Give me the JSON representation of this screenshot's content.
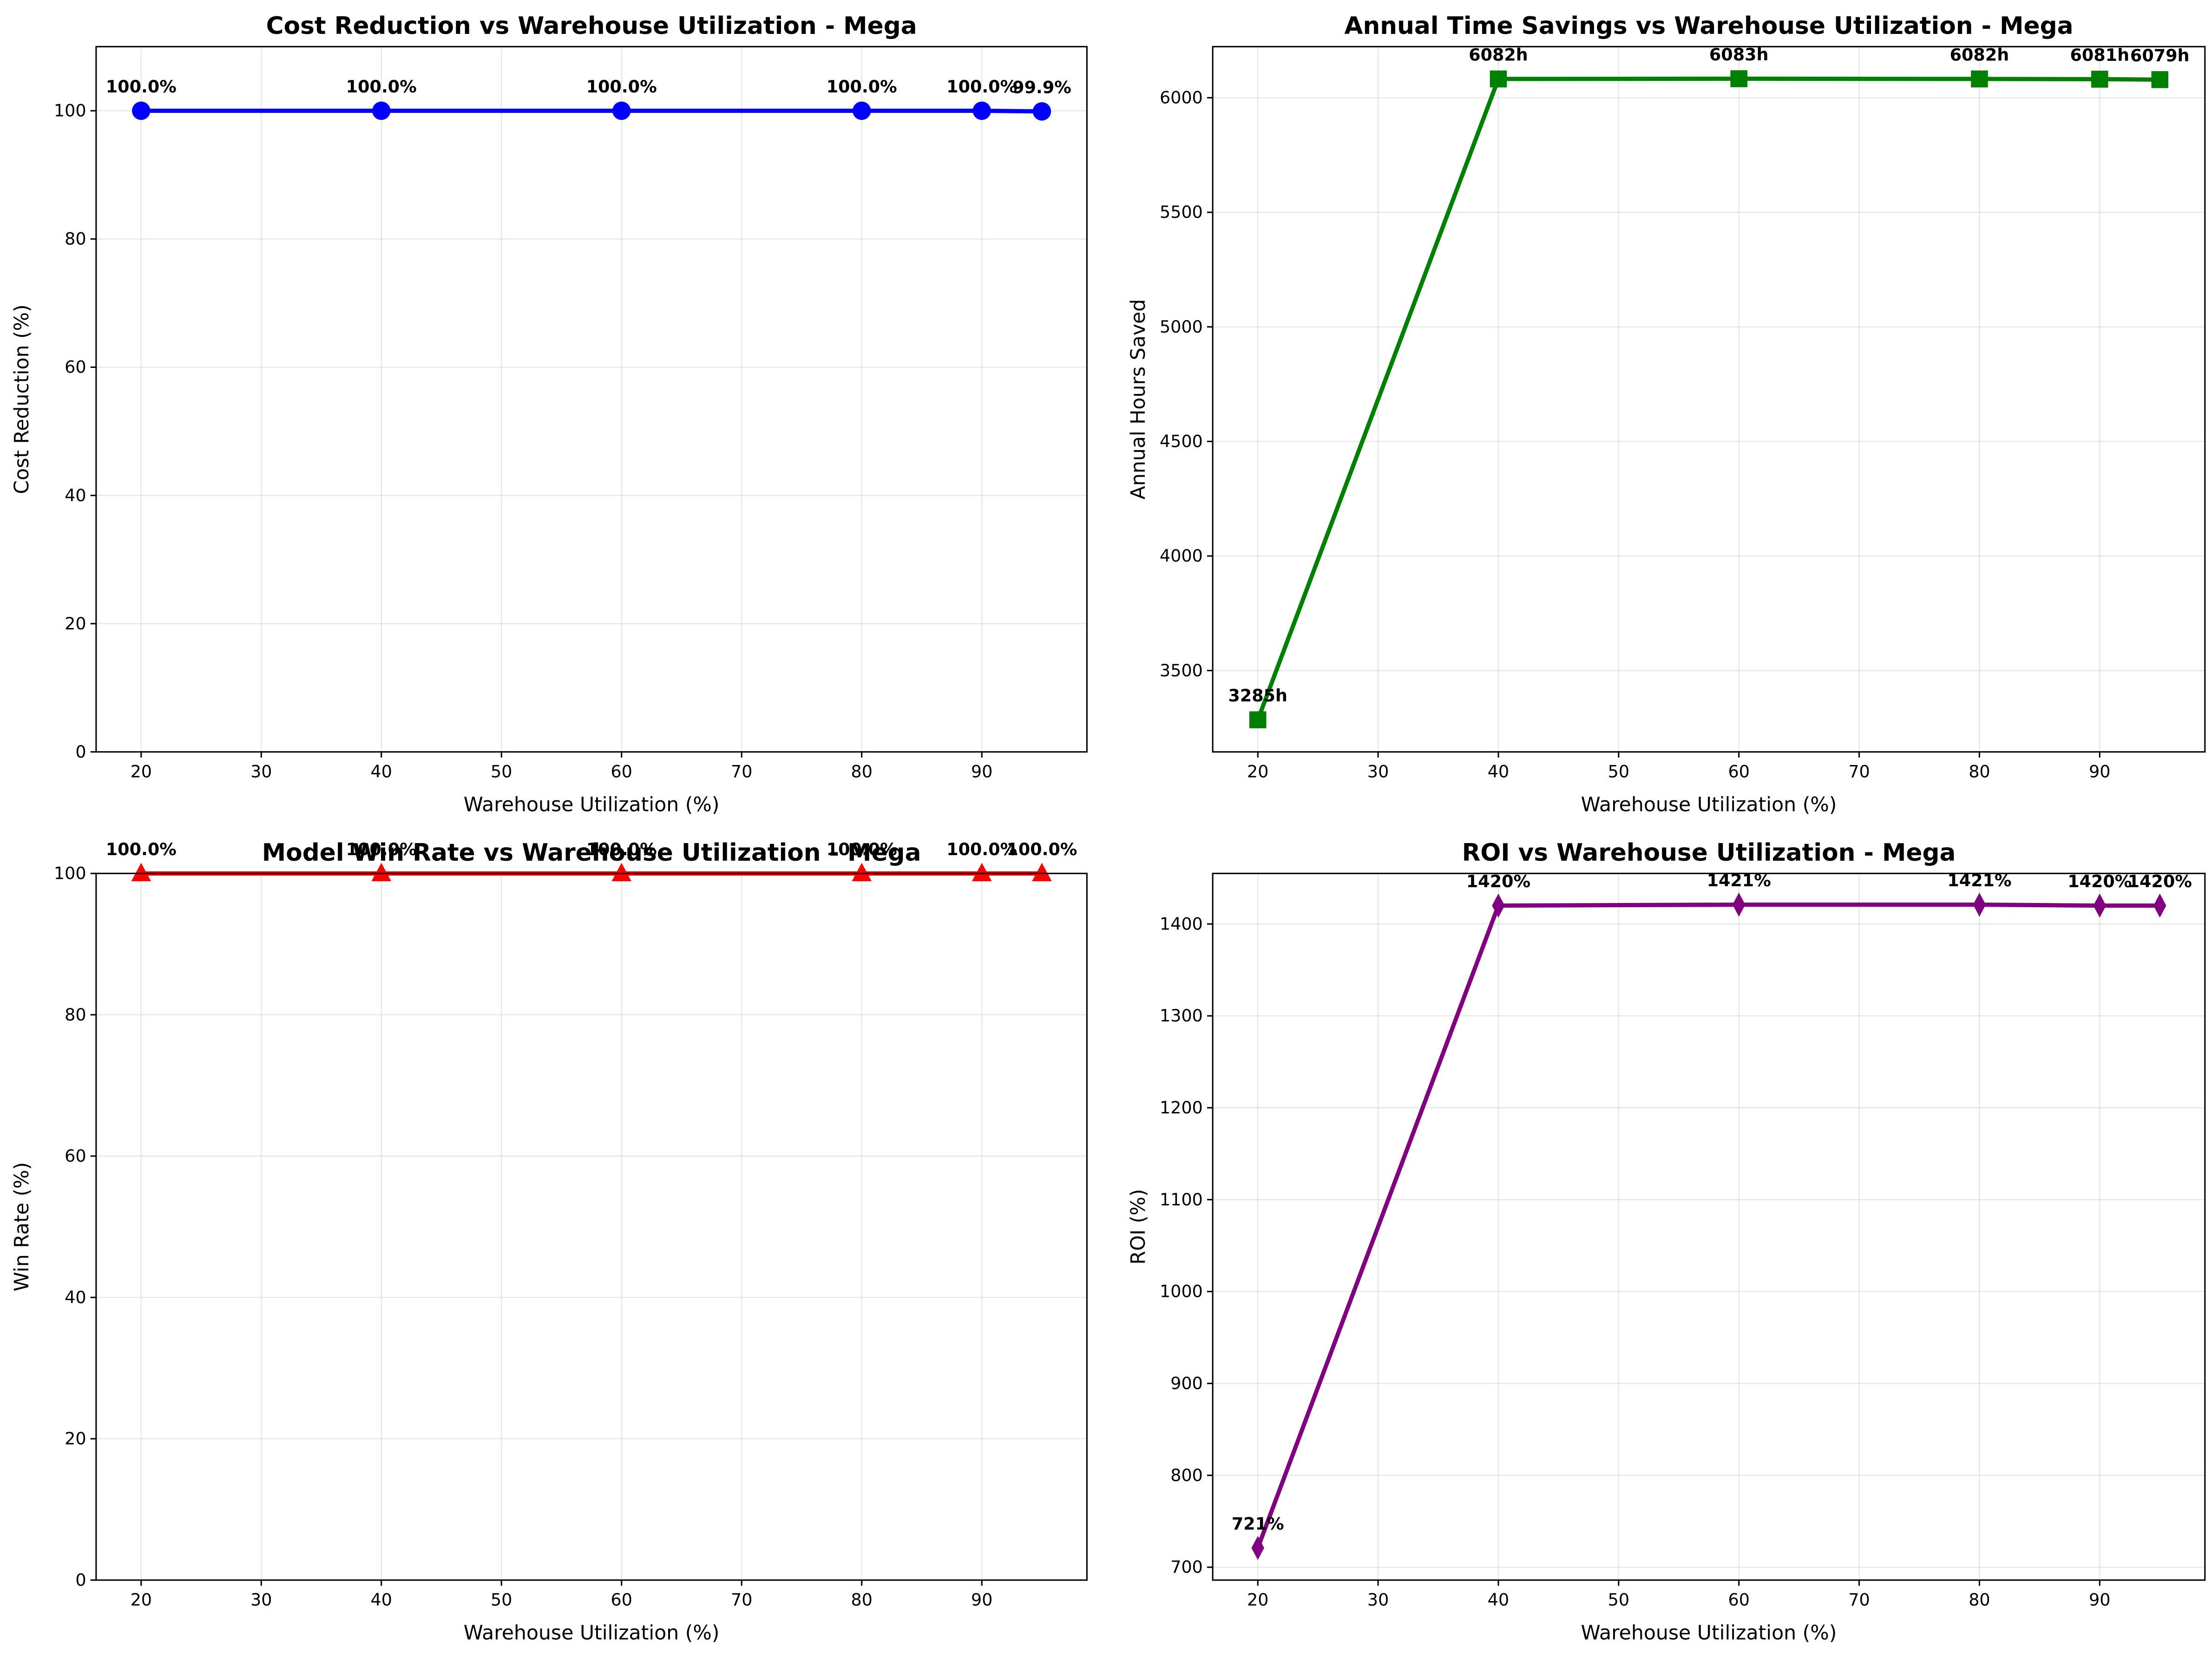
{
  "chart_data": [
    {
      "type": "line",
      "title": "Cost Reduction vs Warehouse Utilization - Mega",
      "xlabel": "Warehouse Utilization (%)",
      "ylabel": "Cost Reduction (%)",
      "x": [
        20,
        40,
        60,
        80,
        90,
        95
      ],
      "values": [
        100.0,
        100.0,
        100.0,
        100.0,
        100.0,
        99.9
      ],
      "annotations": [
        "100.0%",
        "100.0%",
        "100.0%",
        "100.0%",
        "100.0%",
        "99.9%"
      ],
      "xlim": [
        16.25,
        98.75
      ],
      "ylim": [
        0,
        110
      ],
      "xticks": [
        20,
        30,
        40,
        50,
        60,
        70,
        80,
        90
      ],
      "yticks": [
        0,
        20,
        40,
        60,
        80,
        100
      ],
      "color": "#0000ff",
      "marker": "circle",
      "grid": true
    },
    {
      "type": "line",
      "title": "Annual Time Savings vs Warehouse Utilization - Mega",
      "xlabel": "Warehouse Utilization (%)",
      "ylabel": "Annual Hours Saved",
      "x": [
        20,
        40,
        60,
        80,
        90,
        95
      ],
      "values": [
        3285,
        6082,
        6083,
        6082,
        6081,
        6079
      ],
      "annotations": [
        "3285h",
        "6082h",
        "6083h",
        "6082h",
        "6081h",
        "6079h"
      ],
      "xlim": [
        16.25,
        98.75
      ],
      "ylim": [
        3145,
        6223
      ],
      "xticks": [
        20,
        30,
        40,
        50,
        60,
        70,
        80,
        90
      ],
      "yticks": [
        3500,
        4000,
        4500,
        5000,
        5500,
        6000
      ],
      "color": "#008000",
      "marker": "square",
      "grid": true
    },
    {
      "type": "line",
      "title": "Model Win Rate vs Warehouse Utilization - Mega",
      "xlabel": "Warehouse Utilization (%)",
      "ylabel": "Win Rate (%)",
      "x": [
        20,
        40,
        60,
        80,
        90,
        95
      ],
      "values": [
        100.0,
        100.0,
        100.0,
        100.0,
        100.0,
        100.0
      ],
      "annotations": [
        "100.0%",
        "100.0%",
        "100.0%",
        "100.0%",
        "100.0%",
        "100.0%"
      ],
      "xlim": [
        16.25,
        98.75
      ],
      "ylim": [
        0,
        100
      ],
      "xticks": [
        20,
        30,
        40,
        50,
        60,
        70,
        80,
        90
      ],
      "yticks": [
        0,
        20,
        40,
        60,
        80,
        100
      ],
      "color": "#ff0000",
      "marker": "triangle",
      "grid": true
    },
    {
      "type": "line",
      "title": "ROI vs Warehouse Utilization - Mega",
      "xlabel": "Warehouse Utilization (%)",
      "ylabel": "ROI (%)",
      "x": [
        20,
        40,
        60,
        80,
        90,
        95
      ],
      "values": [
        721,
        1420,
        1421,
        1421,
        1420,
        1420
      ],
      "annotations": [
        "721%",
        "1420%",
        "1421%",
        "1421%",
        "1420%",
        "1420%"
      ],
      "xlim": [
        16.25,
        98.75
      ],
      "ylim": [
        686,
        1455
      ],
      "xticks": [
        20,
        30,
        40,
        50,
        60,
        70,
        80,
        90
      ],
      "yticks": [
        700,
        800,
        900,
        1000,
        1100,
        1200,
        1300,
        1400
      ],
      "color": "#800080",
      "marker": "diamond",
      "grid": true
    }
  ],
  "panels": {
    "p0": {
      "title": "Cost Reduction vs Warehouse Utilization - Mega",
      "xlabel": "Warehouse Utilization (%)",
      "ylabel": "Cost Reduction (%)"
    },
    "p1": {
      "title": "Annual Time Savings vs Warehouse Utilization - Mega",
      "xlabel": "Warehouse Utilization (%)",
      "ylabel": "Annual Hours Saved"
    },
    "p2": {
      "title": "Model Win Rate vs Warehouse Utilization - Mega",
      "xlabel": "Warehouse Utilization (%)",
      "ylabel": "Win Rate (%)"
    },
    "p3": {
      "title": "ROI vs Warehouse Utilization - Mega",
      "xlabel": "Warehouse Utilization (%)",
      "ylabel": "ROI (%)"
    }
  }
}
